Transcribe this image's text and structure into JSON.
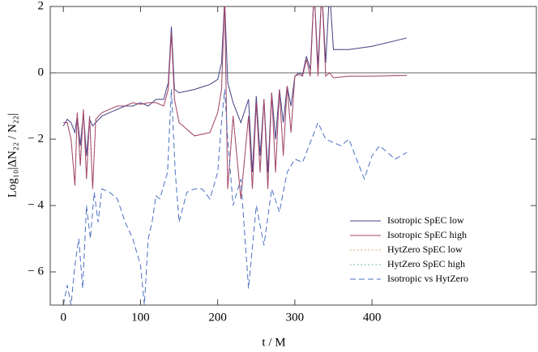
{
  "chart_data": {
    "type": "line",
    "x_label": "t / M",
    "y_label": "Log₁₀|ΔN₂₂ / N₂₂|",
    "xlim": [
      -17,
      613
    ],
    "ylim": [
      -7,
      2
    ],
    "xticks": [
      0,
      100,
      200,
      300,
      400
    ],
    "yticks": [
      {
        "value": -6,
        "label": "− 6"
      },
      {
        "value": -4,
        "label": "− 4"
      },
      {
        "value": -2,
        "label": "− 2"
      },
      0,
      2
    ],
    "reference_line": 0,
    "legend": "lower right",
    "series": [
      {
        "name": "HytZero SpEC low",
        "color": "#c8963c",
        "style": "dotted",
        "x": [
          0,
          5,
          10,
          15,
          18,
          22,
          26,
          30,
          34,
          38,
          42,
          50,
          60,
          70,
          80,
          90,
          100,
          110,
          120,
          130,
          136,
          140,
          144,
          150,
          170,
          190,
          200,
          205,
          209,
          213,
          220,
          230,
          240,
          245,
          250,
          255,
          260,
          265,
          270,
          275,
          280,
          285,
          290,
          295,
          300,
          305,
          310,
          315,
          320,
          325,
          330,
          335,
          340,
          345,
          350,
          370,
          400,
          445
        ],
        "values": [
          -1.6,
          -1.4,
          -1.5,
          -1.8,
          -1.3,
          -2.2,
          -1.2,
          -2.5,
          -1.4,
          -1.6,
          -1.5,
          -1.3,
          -1.2,
          -1.1,
          -1.0,
          -1.0,
          -0.9,
          -1.0,
          -0.8,
          -0.8,
          -0.3,
          1.4,
          -0.5,
          -0.6,
          -0.5,
          -0.35,
          -0.2,
          0.3,
          2.2,
          -0.3,
          -0.9,
          -1.5,
          -0.8,
          -3,
          -0.7,
          -2.5,
          -0.8,
          -3,
          -0.6,
          -2,
          -0.5,
          -1.5,
          -0.4,
          -1,
          -0.1,
          0,
          -0.05,
          0.5,
          0.1,
          2.5,
          0.2,
          2.5,
          0.3,
          2.5,
          0.7,
          0.7,
          0.8,
          1.05
        ]
      },
      {
        "name": "HytZero SpEC high",
        "color": "#4aa86a",
        "style": "dotted",
        "x": [
          0,
          5,
          10,
          15,
          18,
          22,
          26,
          30,
          34,
          38,
          42,
          50,
          60,
          70,
          80,
          90,
          100,
          110,
          120,
          130,
          136,
          140,
          144,
          150,
          170,
          190,
          200,
          205,
          209,
          213,
          220,
          230,
          240,
          245,
          250,
          255,
          260,
          265,
          270,
          275,
          280,
          285,
          290,
          295,
          300,
          305,
          310,
          315,
          320,
          325,
          330,
          335,
          340,
          345,
          350,
          370,
          400,
          445
        ],
        "values": [
          -1.5,
          -1.5,
          -2,
          -3.4,
          -1.2,
          -2.8,
          -1.1,
          -3.2,
          -1.3,
          -3.5,
          -1.4,
          -1.2,
          -1.1,
          -1.0,
          -1.0,
          -0.9,
          -0.95,
          -0.9,
          -0.9,
          -1.0,
          -0.5,
          1.2,
          -0.8,
          -1.5,
          -1.9,
          -1.8,
          -1.2,
          -0.5,
          2.2,
          -3.5,
          -1.3,
          -3.8,
          -1.3,
          -3.5,
          -0.9,
          -3,
          -0.8,
          -3.5,
          -0.6,
          -3,
          -0.5,
          -2.5,
          -0.4,
          -1.8,
          -0.1,
          -0.05,
          -0.1,
          0.4,
          -0.1,
          2.5,
          -0.1,
          2.5,
          -0.1,
          0,
          -0.15,
          -0.1,
          -0.1,
          -0.08
        ]
      },
      {
        "name": "Isotropic SpEC low",
        "color": "#45458f",
        "style": "solid",
        "x": [
          0,
          5,
          10,
          15,
          18,
          22,
          26,
          30,
          34,
          38,
          42,
          50,
          60,
          70,
          80,
          90,
          100,
          110,
          120,
          130,
          136,
          140,
          144,
          150,
          170,
          190,
          200,
          205,
          209,
          213,
          220,
          230,
          240,
          245,
          250,
          255,
          260,
          265,
          270,
          275,
          280,
          285,
          290,
          295,
          300,
          305,
          310,
          315,
          320,
          325,
          330,
          335,
          340,
          345,
          350,
          370,
          400,
          445
        ],
        "values": [
          -1.6,
          -1.4,
          -1.5,
          -1.8,
          -1.3,
          -2.2,
          -1.2,
          -2.5,
          -1.4,
          -1.6,
          -1.5,
          -1.3,
          -1.2,
          -1.1,
          -1.0,
          -1.0,
          -0.9,
          -1.0,
          -0.8,
          -0.8,
          -0.3,
          1.4,
          -0.5,
          -0.6,
          -0.5,
          -0.35,
          -0.2,
          0.3,
          2.2,
          -0.3,
          -0.9,
          -1.5,
          -0.8,
          -3,
          -0.7,
          -2.5,
          -0.8,
          -3,
          -0.6,
          -2,
          -0.5,
          -1.5,
          -0.4,
          -1,
          -0.1,
          0,
          -0.05,
          0.5,
          0.1,
          2.5,
          0.2,
          2.5,
          0.3,
          2.5,
          0.7,
          0.7,
          0.8,
          1.05
        ]
      },
      {
        "name": "Isotropic SpEC high",
        "color": "#a8456a",
        "style": "solid",
        "x": [
          0,
          5,
          10,
          15,
          18,
          22,
          26,
          30,
          34,
          38,
          42,
          50,
          60,
          70,
          80,
          90,
          100,
          110,
          120,
          130,
          136,
          140,
          144,
          150,
          170,
          190,
          200,
          205,
          209,
          213,
          220,
          230,
          240,
          245,
          250,
          255,
          260,
          265,
          270,
          275,
          280,
          285,
          290,
          295,
          300,
          305,
          310,
          315,
          320,
          325,
          330,
          335,
          340,
          345,
          350,
          370,
          400,
          445
        ],
        "values": [
          -1.5,
          -1.5,
          -2,
          -3.4,
          -1.2,
          -2.8,
          -1.1,
          -3.2,
          -1.3,
          -3.5,
          -1.4,
          -1.2,
          -1.1,
          -1.0,
          -1.0,
          -0.9,
          -0.95,
          -0.9,
          -0.9,
          -1.0,
          -0.5,
          1.2,
          -0.8,
          -1.5,
          -1.9,
          -1.8,
          -1.2,
          -0.5,
          2.2,
          -3.5,
          -1.3,
          -3.8,
          -1.3,
          -3.5,
          -0.9,
          -3,
          -0.8,
          -3.5,
          -0.6,
          -3,
          -0.5,
          -2.5,
          -0.4,
          -1.8,
          -0.1,
          -0.05,
          -0.1,
          0.4,
          -0.1,
          2.5,
          -0.1,
          2.5,
          -0.1,
          0,
          -0.15,
          -0.1,
          -0.1,
          -0.08
        ]
      },
      {
        "name": "Isotropic vs HytZero",
        "color": "#4a70c0",
        "style": "dashed",
        "x": [
          0,
          5,
          10,
          15,
          20,
          25,
          30,
          35,
          40,
          45,
          50,
          60,
          70,
          80,
          90,
          100,
          105,
          110,
          115,
          120,
          125,
          130,
          135,
          140,
          145,
          150,
          160,
          170,
          180,
          190,
          200,
          205,
          209,
          213,
          220,
          230,
          240,
          250,
          260,
          270,
          280,
          290,
          300,
          310,
          320,
          330,
          340,
          350,
          360,
          370,
          380,
          390,
          400,
          410,
          420,
          430,
          445
        ],
        "values": [
          -7,
          -6.4,
          -7,
          -5.8,
          -5,
          -6.5,
          -4,
          -5,
          -3.6,
          -4.5,
          -3.5,
          -3.6,
          -3.8,
          -4.5,
          -5,
          -5.8,
          -7,
          -5,
          -4.5,
          -3.7,
          -3.8,
          -3.4,
          -3,
          -0.5,
          -3,
          -4.5,
          -3.6,
          -3.5,
          -3.5,
          -3.8,
          -3,
          -1.5,
          -0.5,
          -2,
          -4,
          -3.2,
          -6.5,
          -4,
          -5.2,
          -3.5,
          -4.2,
          -3,
          -2.6,
          -2.7,
          -2.1,
          -1.5,
          -2,
          -2.1,
          -2.2,
          -2,
          -2.6,
          -3.2,
          -2.5,
          -2.2,
          -2.4,
          -2.6,
          -2.4
        ]
      }
    ]
  }
}
